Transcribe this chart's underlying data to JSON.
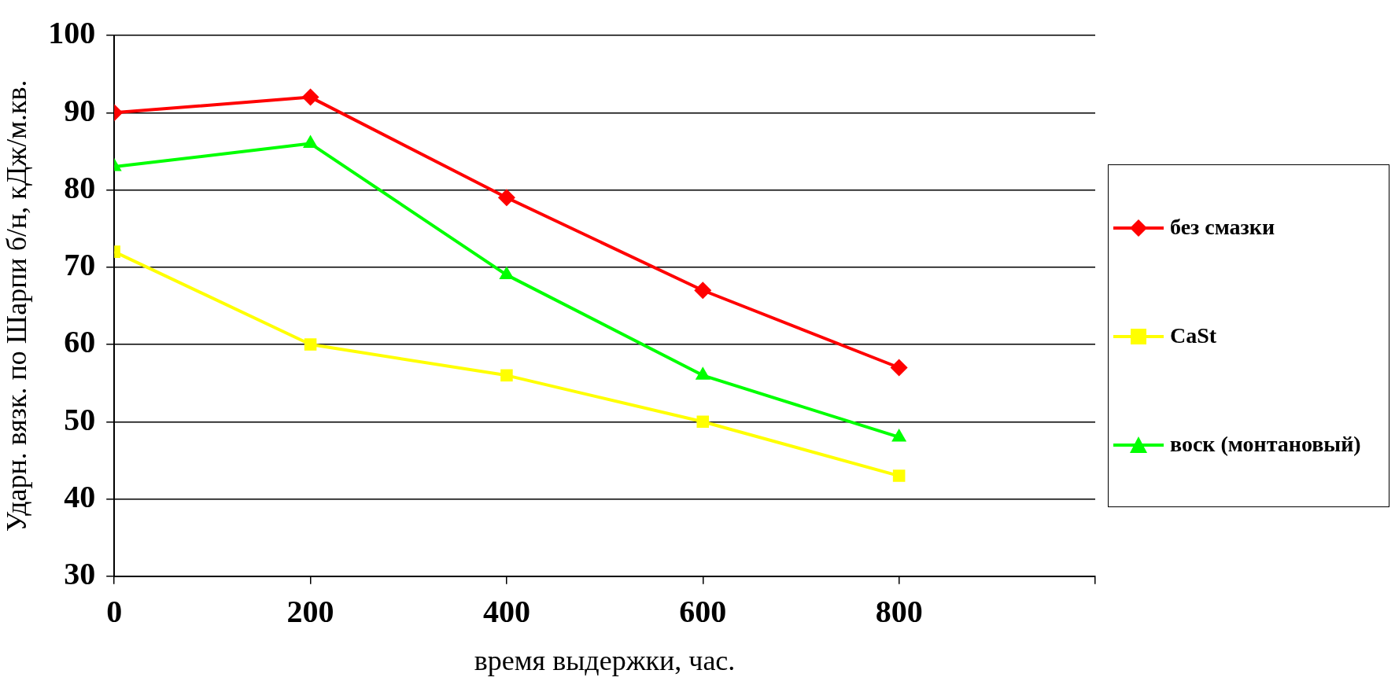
{
  "chart_data": {
    "type": "line",
    "xlabel": "время выдержки, час.",
    "ylabel": "Ударн. вязк. по Шарпи б/н, кДж/м.кв.",
    "x": [
      0,
      200,
      400,
      600,
      800
    ],
    "series": [
      {
        "name": "без смазки",
        "color": "#ff0000",
        "marker": "diamond",
        "values": [
          90,
          92,
          79,
          67,
          57
        ]
      },
      {
        "name": "CaSt",
        "color": "#ffff00",
        "marker": "square",
        "values": [
          72,
          60,
          56,
          50,
          43
        ]
      },
      {
        "name": "воск (монтановый)",
        "color": "#00ff00",
        "marker": "triangle",
        "values": [
          83,
          86,
          69,
          56,
          48
        ]
      }
    ],
    "xlim": [
      0,
      1000
    ],
    "xticks": [
      0,
      200,
      400,
      600,
      800,
      {
        "value": 1000,
        "label": null
      }
    ],
    "ylim": [
      30,
      100
    ],
    "yticks": [
      30,
      40,
      50,
      60,
      70,
      80,
      90,
      100
    ],
    "grid": "y",
    "legend": "right",
    "line_style": "solid"
  }
}
